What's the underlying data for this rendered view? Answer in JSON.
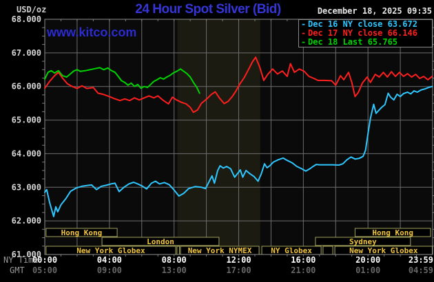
{
  "header": {
    "unit": "USD/oz",
    "title": "24 Hour Spot Silver (Bid)",
    "datetime": "December 18, 2025 09:35",
    "watermark": "www.kitco.com"
  },
  "colors": {
    "background": "#000000",
    "chart_bg": "#0a0a0a",
    "band": "#1b1b12",
    "grid": "#6e6e6e",
    "border": "#909090",
    "tick": "#7e7e7e",
    "title_blue": "#3535d8",
    "watermark_blue": "#2b2bd0",
    "date_text": "#e8e8e8",
    "axis_text": "#d6d6d6",
    "axis_text_bright": "#ffffff",
    "axis_text_dim": "#686868",
    "axis_side_label": "#9a9a9a",
    "session_border": "#a3a35c",
    "session_text": "#f0c53e"
  },
  "chart_data": {
    "type": "line",
    "title": "24 Hour Spot Silver (Bid)",
    "ylabel": "USD/oz",
    "xlim_hours": [
      0,
      24
    ],
    "ylim": [
      61,
      68
    ],
    "grid": {
      "x_step_hours": 2,
      "y_step": 1,
      "minor_y_tick": 0.25,
      "minor_x_tick_hours": 1
    },
    "band": {
      "start_hour": 8.2,
      "end_hour": 13.33
    },
    "y_tick_values": [
      68,
      67,
      66,
      65,
      64,
      63,
      62,
      61
    ],
    "y_tick_labels": [
      "68.000",
      "67.000",
      "66.000",
      "65.000",
      "64.000",
      "63.000",
      "62.000",
      "61.000"
    ],
    "x_axis": {
      "row1_name": "NY Time",
      "row2_name": "GMT",
      "tick_hours": [
        0,
        4,
        8,
        12,
        16,
        20,
        23.983
      ],
      "row1_labels": [
        "00:00",
        "04:00",
        "08:00",
        "12:00",
        "16:00",
        "20:00",
        "23:59"
      ],
      "row2_labels": [
        "05:00",
        "09:00",
        "13:00",
        "17:00",
        "21:00",
        "01:00",
        "04:59"
      ]
    },
    "series": [
      {
        "name": "Dec 16",
        "legend": "Dec 16 NY close 63.672",
        "close": 63.672,
        "color": "#2ec7ff",
        "points": [
          [
            0,
            62.85
          ],
          [
            0.12,
            62.93
          ],
          [
            0.3,
            62.55
          ],
          [
            0.55,
            62.13
          ],
          [
            0.68,
            62.42
          ],
          [
            0.8,
            62.27
          ],
          [
            1.0,
            62.48
          ],
          [
            1.3,
            62.66
          ],
          [
            1.6,
            62.88
          ],
          [
            1.95,
            62.98
          ],
          [
            2.3,
            63.03
          ],
          [
            2.6,
            63.05
          ],
          [
            2.9,
            63.07
          ],
          [
            3.2,
            62.93
          ],
          [
            3.5,
            63.03
          ],
          [
            3.8,
            63.06
          ],
          [
            4.1,
            63.1
          ],
          [
            4.35,
            63.12
          ],
          [
            4.6,
            62.87
          ],
          [
            4.9,
            63.0
          ],
          [
            5.2,
            63.1
          ],
          [
            5.5,
            63.15
          ],
          [
            5.8,
            63.09
          ],
          [
            6.05,
            63.03
          ],
          [
            6.3,
            62.95
          ],
          [
            6.6,
            63.12
          ],
          [
            6.85,
            63.18
          ],
          [
            7.1,
            63.1
          ],
          [
            7.4,
            63.14
          ],
          [
            7.7,
            63.08
          ],
          [
            8.0,
            62.92
          ],
          [
            8.3,
            62.74
          ],
          [
            8.6,
            62.82
          ],
          [
            8.9,
            62.96
          ],
          [
            9.3,
            63.02
          ],
          [
            9.7,
            63.0
          ],
          [
            9.95,
            62.96
          ],
          [
            10.2,
            63.2
          ],
          [
            10.35,
            63.34
          ],
          [
            10.5,
            63.12
          ],
          [
            10.7,
            63.5
          ],
          [
            10.85,
            63.64
          ],
          [
            11.05,
            63.57
          ],
          [
            11.25,
            63.62
          ],
          [
            11.5,
            63.55
          ],
          [
            11.75,
            63.3
          ],
          [
            11.95,
            63.42
          ],
          [
            12.1,
            63.52
          ],
          [
            12.25,
            63.3
          ],
          [
            12.45,
            63.5
          ],
          [
            12.7,
            63.4
          ],
          [
            12.95,
            63.32
          ],
          [
            13.2,
            63.18
          ],
          [
            13.4,
            63.4
          ],
          [
            13.6,
            63.7
          ],
          [
            13.75,
            63.58
          ],
          [
            13.95,
            63.65
          ],
          [
            14.15,
            63.75
          ],
          [
            14.45,
            63.82
          ],
          [
            14.75,
            63.87
          ],
          [
            15.0,
            63.8
          ],
          [
            15.3,
            63.73
          ],
          [
            15.6,
            63.62
          ],
          [
            15.9,
            63.55
          ],
          [
            16.15,
            63.48
          ],
          [
            16.4,
            63.55
          ],
          [
            16.6,
            63.62
          ],
          [
            16.8,
            63.68
          ],
          [
            17.0,
            63.67
          ],
          [
            17.4,
            63.67
          ],
          [
            17.8,
            63.67
          ],
          [
            18.2,
            63.66
          ],
          [
            18.45,
            63.7
          ],
          [
            18.7,
            63.82
          ],
          [
            18.95,
            63.9
          ],
          [
            19.2,
            63.84
          ],
          [
            19.45,
            63.86
          ],
          [
            19.7,
            63.92
          ],
          [
            19.85,
            64.1
          ],
          [
            20.0,
            64.6
          ],
          [
            20.15,
            65.05
          ],
          [
            20.35,
            65.47
          ],
          [
            20.5,
            65.2
          ],
          [
            20.65,
            65.28
          ],
          [
            20.85,
            65.38
          ],
          [
            21.05,
            65.46
          ],
          [
            21.25,
            65.8
          ],
          [
            21.4,
            65.68
          ],
          [
            21.6,
            65.6
          ],
          [
            21.8,
            65.77
          ],
          [
            22.0,
            65.7
          ],
          [
            22.2,
            65.79
          ],
          [
            22.45,
            65.83
          ],
          [
            22.65,
            65.78
          ],
          [
            22.85,
            65.87
          ],
          [
            23.05,
            65.83
          ],
          [
            23.3,
            65.9
          ],
          [
            23.55,
            65.93
          ],
          [
            23.75,
            65.97
          ],
          [
            23.98,
            66.0
          ]
        ]
      },
      {
        "name": "Dec 17",
        "legend": "Dec 17 NY close 66.146",
        "close": 66.146,
        "color": "#ff1f1f",
        "points": [
          [
            0,
            65.95
          ],
          [
            0.3,
            66.15
          ],
          [
            0.6,
            66.32
          ],
          [
            0.85,
            66.42
          ],
          [
            1.1,
            66.25
          ],
          [
            1.4,
            66.08
          ],
          [
            1.7,
            66.0
          ],
          [
            2.0,
            65.94
          ],
          [
            2.3,
            66.02
          ],
          [
            2.6,
            65.94
          ],
          [
            3.0,
            65.97
          ],
          [
            3.3,
            65.8
          ],
          [
            3.65,
            65.76
          ],
          [
            4.0,
            65.7
          ],
          [
            4.3,
            65.64
          ],
          [
            4.65,
            65.58
          ],
          [
            4.95,
            65.63
          ],
          [
            5.25,
            65.58
          ],
          [
            5.55,
            65.66
          ],
          [
            5.85,
            65.6
          ],
          [
            6.15,
            65.66
          ],
          [
            6.45,
            65.72
          ],
          [
            6.75,
            65.66
          ],
          [
            7.0,
            65.72
          ],
          [
            7.3,
            65.6
          ],
          [
            7.65,
            65.48
          ],
          [
            7.9,
            65.68
          ],
          [
            8.15,
            65.6
          ],
          [
            8.45,
            65.53
          ],
          [
            8.75,
            65.48
          ],
          [
            9.0,
            65.38
          ],
          [
            9.2,
            65.23
          ],
          [
            9.45,
            65.3
          ],
          [
            9.7,
            65.5
          ],
          [
            10.0,
            65.62
          ],
          [
            10.3,
            65.76
          ],
          [
            10.55,
            65.84
          ],
          [
            10.8,
            65.66
          ],
          [
            11.1,
            65.49
          ],
          [
            11.35,
            65.56
          ],
          [
            11.6,
            65.7
          ],
          [
            11.8,
            65.84
          ],
          [
            12.05,
            66.06
          ],
          [
            12.35,
            66.27
          ],
          [
            12.6,
            66.5
          ],
          [
            12.85,
            66.73
          ],
          [
            13.05,
            66.87
          ],
          [
            13.3,
            66.58
          ],
          [
            13.55,
            66.18
          ],
          [
            13.8,
            66.36
          ],
          [
            14.1,
            66.52
          ],
          [
            14.4,
            66.37
          ],
          [
            14.7,
            66.46
          ],
          [
            15.0,
            66.3
          ],
          [
            15.2,
            66.68
          ],
          [
            15.45,
            66.42
          ],
          [
            15.75,
            66.52
          ],
          [
            16.05,
            66.45
          ],
          [
            16.35,
            66.3
          ],
          [
            16.65,
            66.24
          ],
          [
            16.9,
            66.18
          ],
          [
            17.3,
            66.18
          ],
          [
            17.75,
            66.17
          ],
          [
            18.0,
            66.04
          ],
          [
            18.3,
            66.32
          ],
          [
            18.5,
            66.2
          ],
          [
            18.8,
            66.42
          ],
          [
            19.0,
            66.12
          ],
          [
            19.2,
            65.7
          ],
          [
            19.4,
            65.82
          ],
          [
            19.65,
            66.1
          ],
          [
            19.95,
            66.28
          ],
          [
            20.15,
            66.12
          ],
          [
            20.45,
            66.36
          ],
          [
            20.7,
            66.28
          ],
          [
            20.95,
            66.42
          ],
          [
            21.2,
            66.28
          ],
          [
            21.45,
            66.44
          ],
          [
            21.7,
            66.3
          ],
          [
            21.95,
            66.42
          ],
          [
            22.2,
            66.3
          ],
          [
            22.45,
            66.38
          ],
          [
            22.7,
            66.28
          ],
          [
            22.95,
            66.36
          ],
          [
            23.2,
            66.24
          ],
          [
            23.45,
            66.3
          ],
          [
            23.7,
            66.2
          ],
          [
            23.98,
            66.3
          ]
        ]
      },
      {
        "name": "Dec 18",
        "legend": "Dec 18 Last 65.765",
        "last": 65.765,
        "color": "#00d400",
        "points": [
          [
            0,
            66.22
          ],
          [
            0.2,
            66.42
          ],
          [
            0.4,
            66.47
          ],
          [
            0.6,
            66.4
          ],
          [
            0.85,
            66.47
          ],
          [
            1.1,
            66.32
          ],
          [
            1.35,
            66.28
          ],
          [
            1.55,
            66.36
          ],
          [
            1.8,
            66.46
          ],
          [
            2.0,
            66.5
          ],
          [
            2.2,
            66.45
          ],
          [
            2.5,
            66.47
          ],
          [
            2.8,
            66.5
          ],
          [
            3.1,
            66.53
          ],
          [
            3.4,
            66.56
          ],
          [
            3.65,
            66.5
          ],
          [
            3.9,
            66.55
          ],
          [
            4.1,
            66.48
          ],
          [
            4.35,
            66.42
          ],
          [
            4.55,
            66.3
          ],
          [
            4.75,
            66.17
          ],
          [
            4.95,
            66.12
          ],
          [
            5.15,
            66.04
          ],
          [
            5.35,
            66.1
          ],
          [
            5.55,
            66.0
          ],
          [
            5.75,
            66.06
          ],
          [
            5.95,
            65.95
          ],
          [
            6.15,
            66.0
          ],
          [
            6.35,
            65.97
          ],
          [
            6.55,
            66.06
          ],
          [
            6.75,
            66.15
          ],
          [
            6.95,
            66.2
          ],
          [
            7.15,
            66.26
          ],
          [
            7.35,
            66.22
          ],
          [
            7.55,
            66.28
          ],
          [
            7.75,
            66.33
          ],
          [
            7.95,
            66.4
          ],
          [
            8.2,
            66.46
          ],
          [
            8.4,
            66.52
          ],
          [
            8.6,
            66.45
          ],
          [
            8.8,
            66.38
          ],
          [
            9.0,
            66.28
          ],
          [
            9.2,
            66.12
          ],
          [
            9.4,
            65.98
          ],
          [
            9.58,
            65.8
          ]
        ]
      }
    ],
    "sessions": [
      {
        "row": 0,
        "label": "Hong Kong",
        "start": 0.08,
        "end": 4.48
      },
      {
        "row": 0,
        "label": "Hong Kong",
        "start": 19.2,
        "end": 23.87
      },
      {
        "row": 1,
        "label": "London",
        "start": 3.54,
        "end": 10.78
      },
      {
        "row": 1,
        "label": "Sydney",
        "start": 16.75,
        "end": 22.63
      },
      {
        "row": 2,
        "label": "New York Globex",
        "start": 0.08,
        "end": 8.1
      },
      {
        "row": 2,
        "label": "",
        "start": 8.18,
        "end": 8.33
      },
      {
        "row": 2,
        "label": "New York NYMEX",
        "start": 8.4,
        "end": 13.26
      },
      {
        "row": 2,
        "label": "NY Globex",
        "start": 13.43,
        "end": 17.1
      },
      {
        "row": 2,
        "label": "",
        "start": 17.22,
        "end": 17.82
      },
      {
        "row": 2,
        "label": "New York Globex",
        "start": 17.95,
        "end": 23.98
      }
    ]
  }
}
